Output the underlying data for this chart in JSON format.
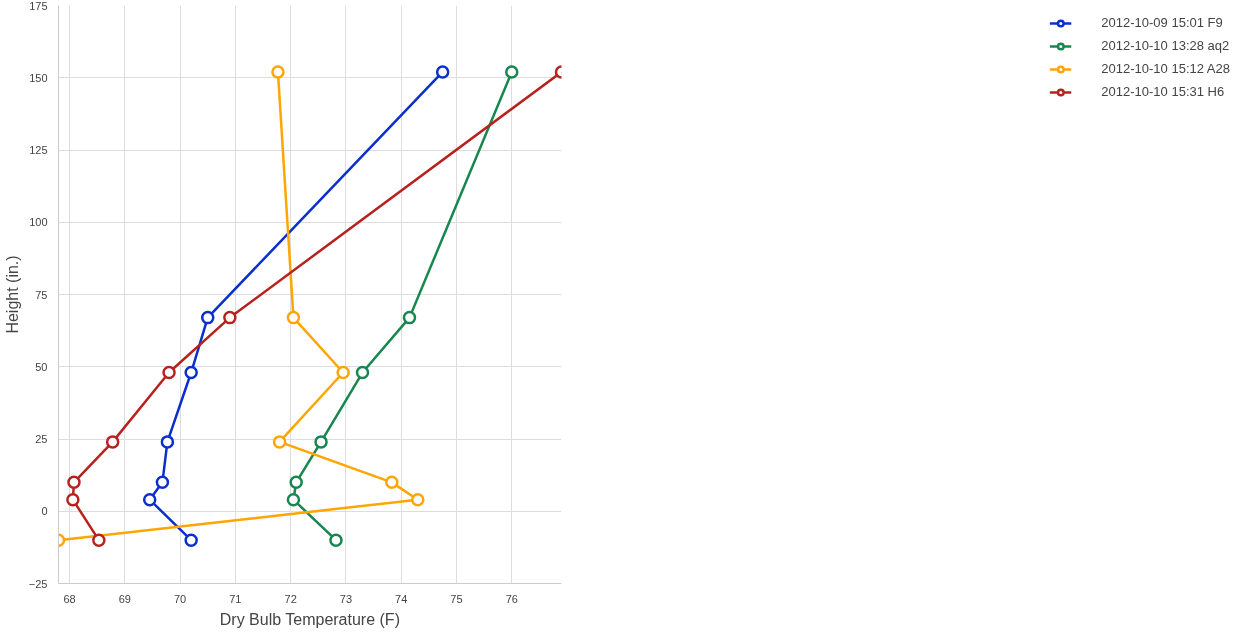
{
  "chart_data": {
    "type": "line",
    "xlabel": "Dry Bulb Temperature (F)",
    "ylabel": "Height (in.)",
    "xlim": [
      67.8,
      76.9
    ],
    "xticks": [
      68,
      69,
      70,
      71,
      72,
      73,
      74,
      75,
      76
    ],
    "ylim": [
      -25,
      175
    ],
    "yticks": [
      -25,
      0,
      25,
      50,
      75,
      100,
      125,
      150,
      175
    ],
    "grid": true,
    "legend": "top right",
    "marker": "circle",
    "line_style": "solid",
    "series": [
      {
        "name": "2012-10-09 15:01 F9",
        "color": "#0b2fcc",
        "x": [
          74.75,
          70.5,
          70.2,
          69.77,
          69.68,
          69.45,
          70.2
        ],
        "values": [
          152,
          67,
          48,
          24,
          10,
          4,
          -10
        ]
      },
      {
        "name": "2012-10-10 13:28 aq2",
        "color": "#17874f",
        "x": [
          76.0,
          74.15,
          73.3,
          72.55,
          72.1,
          72.05,
          72.82
        ],
        "values": [
          152,
          67,
          48,
          24,
          10,
          4,
          -10
        ]
      },
      {
        "name": "2012-10-10 15:12 A28",
        "color": "#ffa500",
        "x": [
          71.77,
          72.05,
          72.95,
          71.8,
          73.83,
          74.3,
          67.8
        ],
        "values": [
          152,
          67,
          48,
          24,
          10,
          4,
          -10
        ]
      },
      {
        "name": "2012-10-10 15:31 H6",
        "color": "#b8221e",
        "x": [
          76.9,
          70.9,
          69.8,
          68.78,
          68.08,
          68.06,
          68.53
        ],
        "values": [
          152,
          67,
          48,
          24,
          10,
          4,
          -10
        ]
      }
    ]
  }
}
